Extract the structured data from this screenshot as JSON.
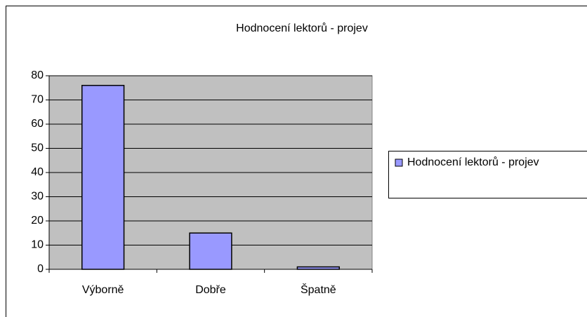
{
  "chart_data": {
    "type": "bar",
    "title": "Hodnocení lektorů - projev",
    "categories": [
      "Výborně",
      "Dobře",
      "Špatně"
    ],
    "series": [
      {
        "name": "Hodnocení lektorů - projev",
        "color": "#9999ff",
        "values": [
          76,
          15,
          1
        ]
      }
    ],
    "ylim": [
      0,
      80
    ],
    "yticks": [
      0,
      10,
      20,
      30,
      40,
      50,
      60,
      70,
      80
    ],
    "grid": true,
    "legend": "right"
  }
}
